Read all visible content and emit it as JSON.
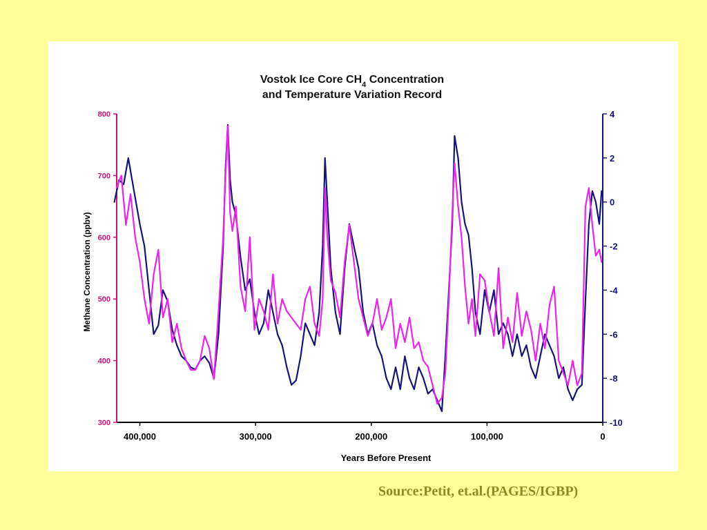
{
  "chart_data": {
    "type": "line",
    "title_lines": [
      {
        "parts": [
          {
            "text": "Vostok Ice Core CH"
          },
          {
            "text": "4",
            "sub": true
          },
          {
            "text": " Concentration"
          }
        ]
      },
      {
        "parts": [
          {
            "text": "and Temperature Variation Record"
          }
        ]
      }
    ],
    "xlabel": "Years Before Present",
    "ylabel_left": "Methane Concentration (ppbv)",
    "xlim": [
      420000,
      0
    ],
    "ylim_left": [
      300,
      800
    ],
    "ylim_right": [
      -10,
      4
    ],
    "x_ticks": [
      {
        "value": 400000,
        "label": "400,000"
      },
      {
        "value": 300000,
        "label": "300,000"
      },
      {
        "value": 200000,
        "label": "200,000"
      },
      {
        "value": 100000,
        "label": "100,000"
      },
      {
        "value": 0,
        "label": "0"
      }
    ],
    "y_left_ticks": [
      {
        "value": 800,
        "label": "800"
      },
      {
        "value": 700,
        "label": "700"
      },
      {
        "value": 600,
        "label": "600"
      },
      {
        "value": 500,
        "label": "500"
      },
      {
        "value": 400,
        "label": "400"
      },
      {
        "value": 300,
        "label": "300"
      }
    ],
    "y_right_ticks": [
      {
        "value": 4,
        "label": "4"
      },
      {
        "value": 2,
        "label": "2"
      },
      {
        "value": 0,
        "label": "0"
      },
      {
        "value": -2,
        "label": "-2"
      },
      {
        "value": -4,
        "label": "-4"
      },
      {
        "value": -6,
        "label": "-6"
      },
      {
        "value": -8,
        "label": "-8"
      },
      {
        "value": -10,
        "label": "-10"
      }
    ],
    "left_axis_color": "#CC1177",
    "right_axis_color": "#141478",
    "grid": false,
    "series": [
      {
        "axis": "right",
        "color": "#14147A",
        "x": [
          422000,
          418000,
          414000,
          410000,
          405000,
          400000,
          396000,
          392000,
          388000,
          384000,
          380000,
          376000,
          372000,
          368000,
          364000,
          360000,
          356000,
          352000,
          348000,
          344000,
          340000,
          336000,
          332000,
          328000,
          326000,
          324000,
          322000,
          320000,
          317000,
          313000,
          309000,
          305000,
          301000,
          297000,
          293000,
          289000,
          285000,
          281000,
          277000,
          273000,
          269000,
          265000,
          261000,
          257000,
          253000,
          249000,
          245000,
          242000,
          240000,
          238000,
          235000,
          231000,
          227000,
          223000,
          219000,
          215000,
          211000,
          207000,
          203000,
          199000,
          195000,
          191000,
          187000,
          183000,
          179000,
          175000,
          171000,
          167000,
          163000,
          159000,
          155000,
          151000,
          147000,
          143000,
          139000,
          136000,
          133000,
          130000,
          128000,
          125000,
          122000,
          119000,
          116000,
          113000,
          110000,
          106000,
          102000,
          98000,
          94000,
          90000,
          86000,
          82000,
          78000,
          74000,
          70000,
          66000,
          62000,
          58000,
          54000,
          50000,
          46000,
          42000,
          38000,
          34000,
          30000,
          26000,
          22000,
          18000,
          15000,
          12000,
          9000,
          6000,
          3000,
          1000
        ],
        "y": [
          0.0,
          1.0,
          0.8,
          2.0,
          0.5,
          -1.0,
          -2.0,
          -4.0,
          -6.0,
          -5.6,
          -4.0,
          -4.5,
          -5.8,
          -6.5,
          -7.0,
          -7.2,
          -7.5,
          -7.6,
          -7.2,
          -7.0,
          -7.3,
          -8.0,
          -6.0,
          -2.0,
          1.5,
          3.5,
          1.0,
          0.0,
          -0.6,
          -2.5,
          -4.0,
          -3.5,
          -5.0,
          -6.0,
          -5.5,
          -4.0,
          -5.0,
          -6.0,
          -6.5,
          -7.5,
          -8.3,
          -8.1,
          -7.0,
          -5.5,
          -6.0,
          -6.5,
          -5.0,
          -2.0,
          2.0,
          0.0,
          -3.0,
          -5.0,
          -6.0,
          -3.0,
          -1.0,
          -2.0,
          -3.0,
          -5.0,
          -6.0,
          -5.5,
          -6.5,
          -7.0,
          -8.0,
          -8.5,
          -7.5,
          -8.5,
          -7.0,
          -8.0,
          -8.5,
          -7.5,
          -8.0,
          -8.7,
          -8.5,
          -9.0,
          -9.5,
          -7.0,
          -4.0,
          -1.0,
          3.0,
          2.0,
          0.0,
          -1.0,
          -1.5,
          -3.0,
          -5.0,
          -6.0,
          -4.0,
          -5.0,
          -4.0,
          -6.0,
          -5.5,
          -6.0,
          -7.0,
          -6.0,
          -7.0,
          -6.5,
          -7.5,
          -8.0,
          -7.0,
          -6.0,
          -6.5,
          -7.0,
          -8.0,
          -7.5,
          -8.5,
          -9.0,
          -8.5,
          -8.3,
          -4.5,
          -1.0,
          0.5,
          0.0,
          -1.0,
          0.5
        ]
      },
      {
        "axis": "left",
        "color": "#EE22EE",
        "x": [
          420000,
          416000,
          412000,
          408000,
          404000,
          400000,
          396000,
          392000,
          388000,
          384000,
          380000,
          376000,
          372000,
          368000,
          364000,
          360000,
          356000,
          352000,
          348000,
          344000,
          340000,
          336000,
          332000,
          328000,
          326000,
          324000,
          322000,
          320000,
          317000,
          313000,
          309000,
          305000,
          301000,
          297000,
          293000,
          289000,
          285000,
          281000,
          277000,
          273000,
          269000,
          265000,
          261000,
          257000,
          253000,
          249000,
          245000,
          242000,
          240000,
          238000,
          235000,
          231000,
          227000,
          223000,
          219000,
          215000,
          211000,
          207000,
          203000,
          199000,
          195000,
          191000,
          187000,
          183000,
          179000,
          175000,
          171000,
          167000,
          163000,
          159000,
          155000,
          151000,
          147000,
          143000,
          139000,
          136000,
          133000,
          130000,
          128000,
          125000,
          122000,
          119000,
          116000,
          113000,
          110000,
          106000,
          102000,
          98000,
          94000,
          90000,
          86000,
          82000,
          78000,
          74000,
          70000,
          66000,
          62000,
          58000,
          54000,
          50000,
          46000,
          42000,
          38000,
          34000,
          30000,
          26000,
          22000,
          18000,
          15000,
          12000,
          9000,
          6000,
          3000,
          1000
        ],
        "y": [
          680,
          700,
          620,
          670,
          600,
          560,
          500,
          460,
          540,
          580,
          470,
          500,
          430,
          460,
          420,
          400,
          385,
          385,
          400,
          440,
          420,
          370,
          480,
          600,
          700,
          780,
          640,
          610,
          650,
          520,
          480,
          600,
          450,
          500,
          480,
          450,
          540,
          460,
          500,
          480,
          470,
          460,
          450,
          500,
          520,
          460,
          440,
          500,
          680,
          600,
          530,
          510,
          470,
          560,
          620,
          560,
          500,
          470,
          440,
          460,
          500,
          450,
          470,
          500,
          420,
          460,
          430,
          470,
          420,
          430,
          400,
          390,
          360,
          330,
          340,
          380,
          500,
          640,
          720,
          650,
          600,
          520,
          460,
          500,
          440,
          540,
          530,
          480,
          440,
          550,
          420,
          470,
          430,
          510,
          440,
          480,
          450,
          400,
          460,
          420,
          490,
          520,
          400,
          380,
          360,
          400,
          360,
          380,
          650,
          680,
          620,
          570,
          580,
          560
        ]
      }
    ]
  },
  "source_text": "Source:Petit, et.al.(PAGES/IGBP)"
}
